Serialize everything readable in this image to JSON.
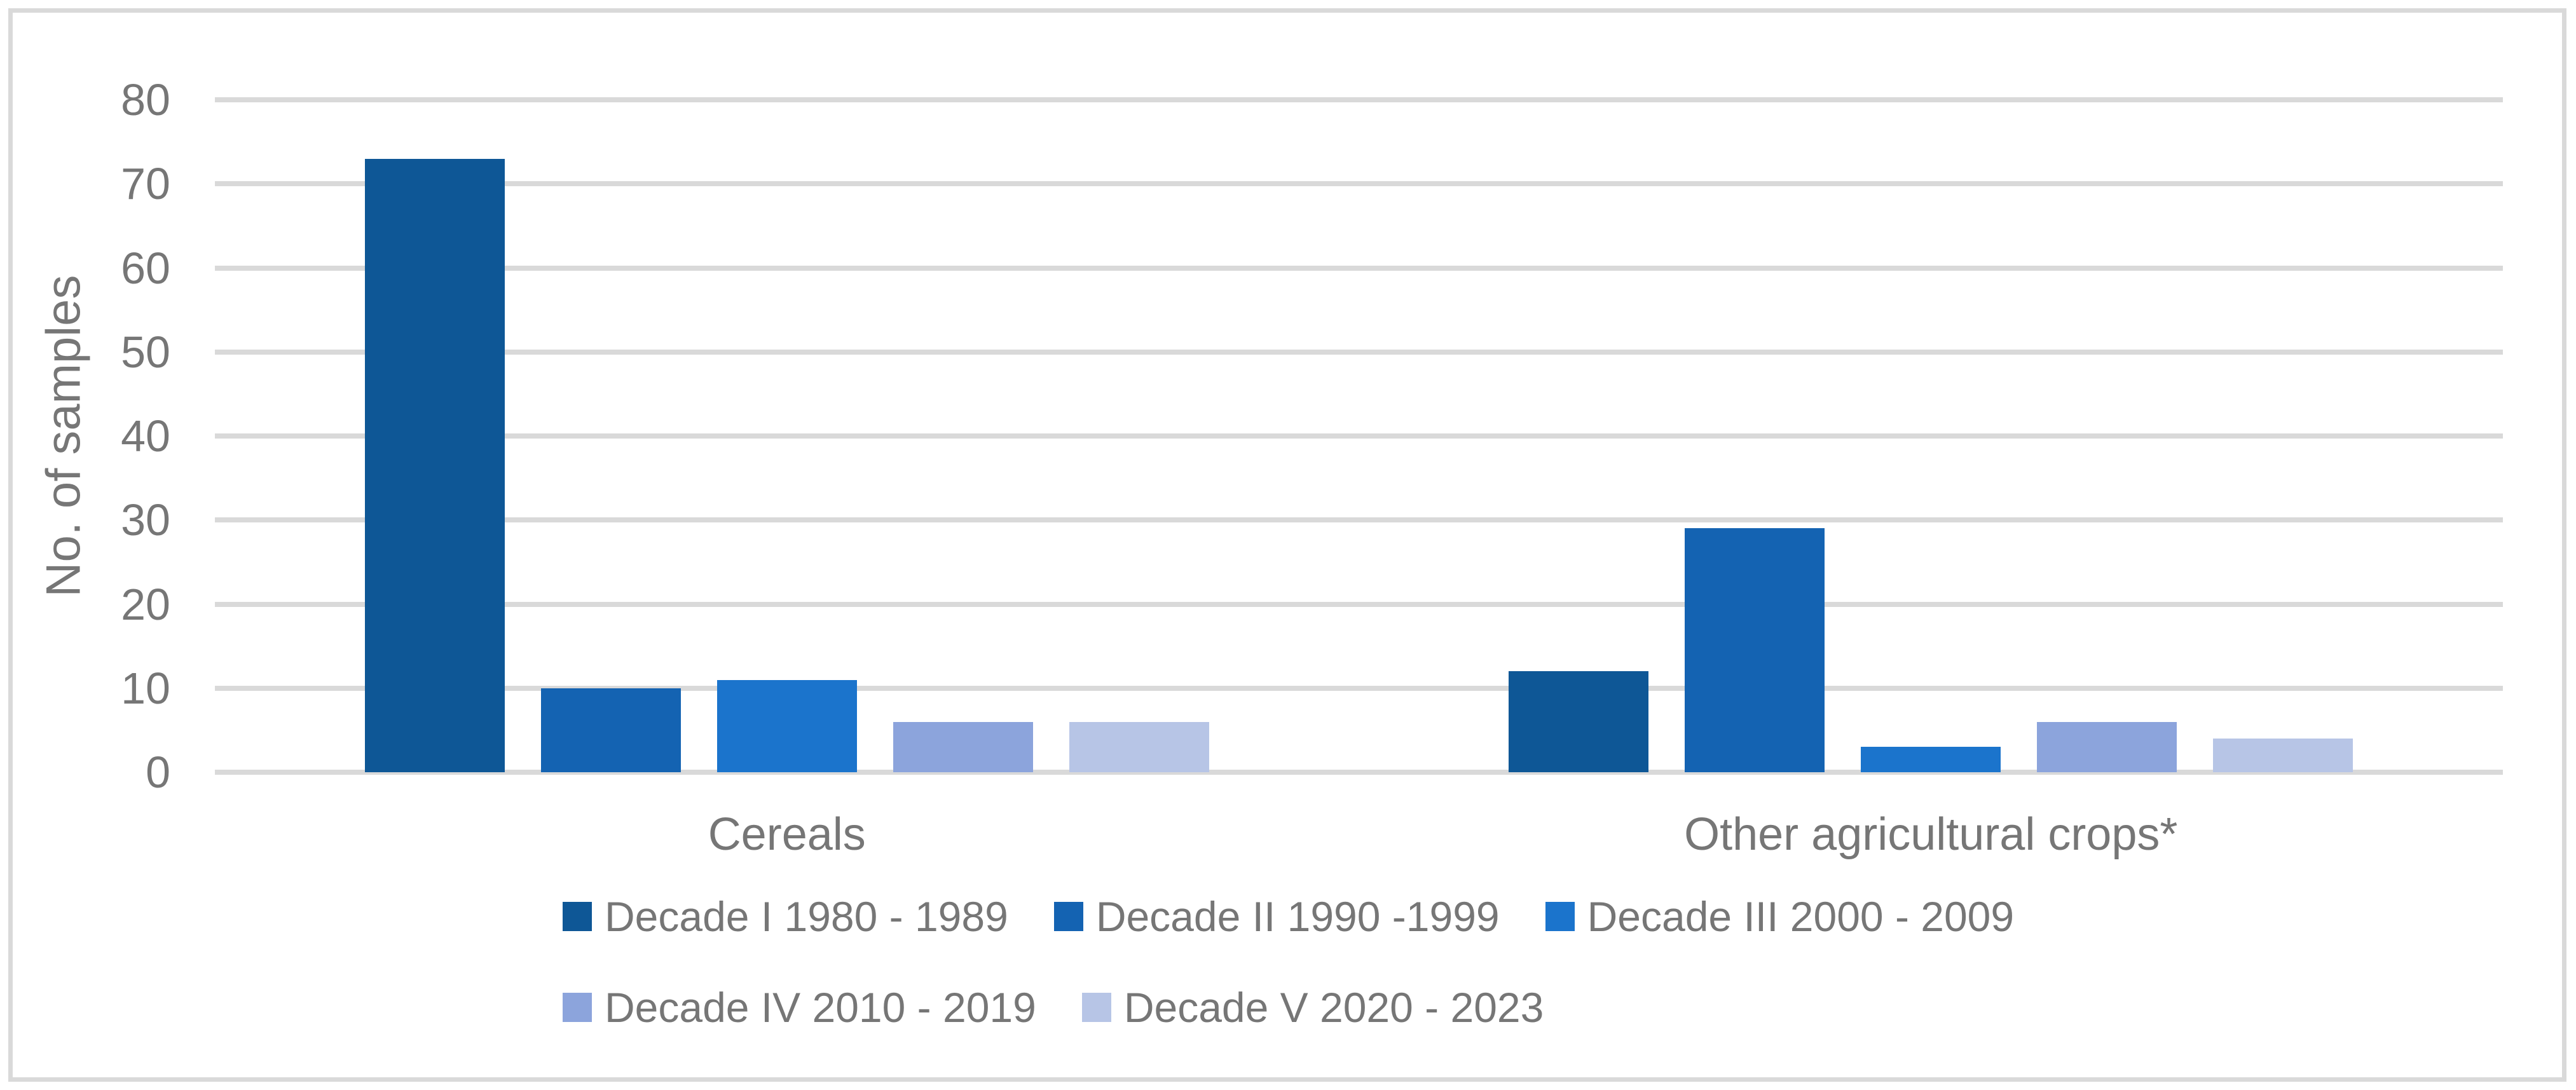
{
  "figure": {
    "background": "#FFFFFF",
    "border_color": "#D9D9D9"
  },
  "chart_data": {
    "type": "bar",
    "title": "",
    "xlabel": "",
    "ylabel": "No. of samples",
    "ylim": [
      0,
      80
    ],
    "yticks": [
      0,
      10,
      20,
      30,
      40,
      50,
      60,
      70,
      80
    ],
    "grid": true,
    "gridline_color": "#D9D9D9",
    "text_color": "#767676",
    "legend_position": "bottom",
    "categories": [
      "Cereals",
      "Other agricultural crops*"
    ],
    "series": [
      {
        "name": "Decade I 1980 - 1989",
        "color": "#0E5796",
        "values": [
          73,
          12
        ]
      },
      {
        "name": "Decade II 1990 -1999",
        "color": "#1463B2",
        "values": [
          10,
          29
        ]
      },
      {
        "name": "Decade III 2000 - 2009",
        "color": "#1B74CC",
        "values": [
          11,
          3
        ]
      },
      {
        "name": "Decade IV 2010 - 2019",
        "color": "#8CA4DC",
        "values": [
          6,
          6
        ]
      },
      {
        "name": "Decade V 2020 - 2023",
        "color": "#B7C5E6",
        "values": [
          6,
          4
        ]
      }
    ],
    "legend_rows": [
      [
        0,
        1,
        2
      ],
      [
        3,
        4
      ]
    ]
  }
}
